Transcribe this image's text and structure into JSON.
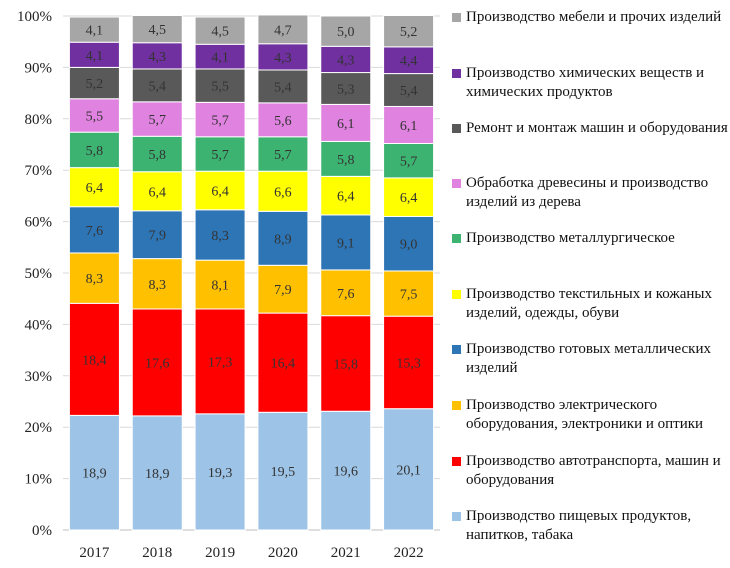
{
  "chart_data": {
    "type": "bar",
    "stacked": true,
    "normalized": true,
    "categories": [
      "2017",
      "2018",
      "2019",
      "2020",
      "2021",
      "2022"
    ],
    "ylim": [
      0,
      100
    ],
    "yticks": [
      "0%",
      "10%",
      "20%",
      "30%",
      "40%",
      "50%",
      "60%",
      "70%",
      "80%",
      "90%",
      "100%"
    ],
    "grid": true,
    "legend_position": "right",
    "series": [
      {
        "name": "Производство пищевых продуктов, напитков, табака",
        "color": "#9dc3e6",
        "values": [
          18.9,
          18.9,
          19.3,
          19.5,
          19.6,
          20.1
        ],
        "labels": [
          "18,9",
          "18,9",
          "19,3",
          "19,5",
          "19,6",
          "20,1"
        ],
        "shares": [
          22.3,
          22.2,
          22.6,
          22.9,
          23.1,
          23.6
        ]
      },
      {
        "name": "Производство автотранспорта, машин и оборудования",
        "color": "#ff0000",
        "values": [
          18.4,
          17.6,
          17.3,
          16.4,
          15.8,
          15.3
        ],
        "labels": [
          "18,4",
          "17,6",
          "17,3",
          "16,4",
          "15,8",
          "15,3"
        ],
        "shares": [
          21.8,
          20.8,
          20.4,
          19.3,
          18.6,
          18.0
        ]
      },
      {
        "name": "Производство электрического оборудования, электроники и оптики",
        "color": "#ffc000",
        "values": [
          8.3,
          8.3,
          8.1,
          7.9,
          7.6,
          7.5
        ],
        "labels": [
          "8,3",
          "8,3",
          "8,1",
          "7,9",
          "7,6",
          "7,5"
        ],
        "shares": [
          9.8,
          9.8,
          9.5,
          9.3,
          8.9,
          8.8
        ]
      },
      {
        "name": "Производство готовых металлических изделий",
        "color": "#2e75b6",
        "values": [
          7.6,
          7.9,
          8.3,
          8.9,
          9.1,
          9.0
        ],
        "labels": [
          "7,6",
          "7,9",
          "8,3",
          "8,9",
          "9,1",
          "9,0"
        ],
        "shares": [
          9.0,
          9.3,
          9.8,
          10.5,
          10.7,
          10.6
        ]
      },
      {
        "name": "Производство текстильных и кожаных изделий, одежды, обуви",
        "color": "#ffff00",
        "values": [
          6.4,
          6.4,
          6.4,
          6.6,
          6.4,
          6.4
        ],
        "labels": [
          "6,4",
          "6,4",
          "6,4",
          "6,6",
          "6,4",
          "6,4"
        ],
        "shares": [
          7.6,
          7.6,
          7.5,
          7.8,
          7.5,
          7.5
        ]
      },
      {
        "name": "Производство металлургическое",
        "color": "#3cb371",
        "values": [
          5.8,
          5.8,
          5.7,
          5.7,
          5.8,
          5.7
        ],
        "labels": [
          "5,8",
          "5,8",
          "5,7",
          "5,7",
          "5,8",
          "5,7"
        ],
        "shares": [
          6.9,
          6.9,
          6.7,
          6.7,
          6.8,
          6.7
        ]
      },
      {
        "name": "Обработка древесины и производство изделий из дерева",
        "color": "#e082e0",
        "values": [
          5.5,
          5.7,
          5.7,
          5.6,
          6.1,
          6.1
        ],
        "labels": [
          "5,5",
          "5,7",
          "5,7",
          "5,6",
          "6,1",
          "6,1"
        ],
        "shares": [
          6.5,
          6.7,
          6.7,
          6.6,
          7.2,
          7.2
        ]
      },
      {
        "name": "Ремонт и монтаж машин и оборудования",
        "color": "#595959",
        "values": [
          5.2,
          5.4,
          5.5,
          5.4,
          5.3,
          5.4
        ],
        "labels": [
          "5,2",
          "5,4",
          "5,5",
          "5,4",
          "5,3",
          "5,4"
        ],
        "shares": [
          6.1,
          6.4,
          6.5,
          6.4,
          6.2,
          6.4
        ]
      },
      {
        "name": "Производство химических веществ и химических продуктов",
        "color": "#7030a0",
        "values": [
          4.1,
          4.3,
          4.1,
          4.3,
          4.3,
          4.4
        ],
        "labels": [
          "4,1",
          "4,3",
          "4,1",
          "4,3",
          "4,3",
          "4,4"
        ],
        "shares": [
          4.9,
          5.1,
          4.8,
          5.1,
          5.1,
          5.2
        ]
      },
      {
        "name": "Производство мебели и прочих изделий",
        "color": "#a6a6a6",
        "values": [
          4.1,
          4.5,
          4.5,
          4.7,
          5.0,
          5.2
        ],
        "labels": [
          "4,1",
          "4,5",
          "4,5",
          "4,7",
          "5,0",
          "5,2"
        ],
        "shares": [
          4.9,
          5.3,
          5.3,
          5.6,
          5.9,
          6.1
        ]
      }
    ]
  }
}
